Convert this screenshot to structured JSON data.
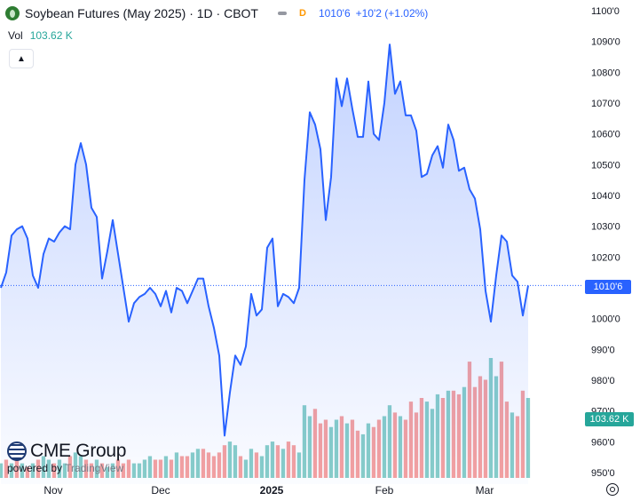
{
  "header": {
    "title": "Soybean Futures (May 2025) · 1D · CBOT",
    "badge": "D",
    "last_price": "1010'6",
    "change": "+10'2 (+1.02%)",
    "icons": [
      "soybean-logo-icon",
      "line-style-icon"
    ]
  },
  "volume": {
    "label": "Vol",
    "value": "103.62 K"
  },
  "price_tag": "1010'6",
  "volume_tag": "103.62 K",
  "branding": {
    "company": "CME Group",
    "powered_prefix": "powered by",
    "powered_brand": "TradingView"
  },
  "colors": {
    "line": "#2962ff",
    "volume_up": "#26a69a",
    "volume_down": "#ef5350"
  },
  "chart_data": {
    "type": "line",
    "title": "Soybean Futures (May 2025) · 1D · CBOT",
    "x_tick_labels": [
      "Nov",
      "Dec",
      "2025",
      "Feb",
      "Mar"
    ],
    "y_tick_labels": [
      "950'0",
      "960'0",
      "970'0",
      "980'0",
      "990'0",
      "1000'0",
      "1010'0",
      "1020'0",
      "1030'0",
      "1040'0",
      "1050'0",
      "1060'0",
      "1070'0",
      "1080'0",
      "1090'0",
      "1100'0"
    ],
    "ylim": [
      947,
      1101
    ],
    "last_value": 1010.75,
    "series": [
      {
        "values": [
          1010,
          1015,
          1027,
          1029,
          1030,
          1026,
          1014,
          1010,
          1021,
          1026,
          1025,
          1028,
          1030,
          1029,
          1050,
          1057,
          1050,
          1036,
          1033,
          1013,
          1022,
          1032,
          1021,
          1010,
          999,
          1005,
          1007,
          1008,
          1010,
          1008,
          1004,
          1009,
          1002,
          1010,
          1009,
          1005,
          1009,
          1013,
          1013,
          1004,
          997,
          988,
          962,
          976,
          988,
          985,
          991,
          1008,
          1001,
          1003,
          1023,
          1026,
          1004,
          1008,
          1007,
          1005,
          1010,
          1045,
          1067,
          1063,
          1055,
          1032,
          1046,
          1078,
          1069,
          1078,
          1068,
          1059,
          1059,
          1077,
          1060,
          1058,
          1070,
          1089,
          1073,
          1077,
          1066,
          1066,
          1061,
          1046,
          1047,
          1053,
          1056,
          1049,
          1063,
          1058,
          1048,
          1049,
          1042,
          1039,
          1029,
          1009,
          999,
          1014,
          1027,
          1025,
          1014,
          1012,
          1001,
          1010.75
        ]
      }
    ],
    "volume": [
      4,
      5,
      4,
      5,
      4,
      3,
      4,
      5,
      6,
      5,
      4,
      5,
      4,
      6,
      7,
      6,
      5,
      4,
      5,
      4,
      3,
      4,
      5,
      4,
      5,
      4,
      4,
      5,
      6,
      5,
      5,
      6,
      5,
      7,
      6,
      6,
      7,
      8,
      8,
      7,
      6,
      7,
      9,
      10,
      9,
      6,
      5,
      8,
      7,
      6,
      9,
      10,
      9,
      8,
      10,
      9,
      7,
      20,
      17,
      19,
      15,
      16,
      14,
      16,
      17,
      15,
      16,
      13,
      12,
      15,
      14,
      16,
      17,
      20,
      18,
      17,
      16,
      21,
      18,
      22,
      21,
      19,
      23,
      22,
      24,
      24,
      23,
      25,
      32,
      25,
      28,
      27,
      33,
      28,
      32,
      21,
      18,
      17,
      24,
      22
    ],
    "volume_up": [
      true,
      false,
      true,
      false,
      true,
      false,
      true,
      false,
      true,
      true,
      false,
      true,
      true,
      false,
      true,
      true,
      false,
      false,
      true,
      false,
      true,
      true,
      false,
      false,
      false,
      true,
      true,
      true,
      true,
      false,
      false,
      true,
      false,
      true,
      false,
      false,
      true,
      true,
      false,
      false,
      false,
      false,
      false,
      true,
      true,
      false,
      true,
      true,
      false,
      true,
      true,
      true,
      false,
      true,
      false,
      false,
      true,
      true,
      true,
      false,
      false,
      false,
      true,
      true,
      false,
      true,
      false,
      false,
      true,
      true,
      false,
      false,
      true,
      true,
      false,
      true,
      false,
      false,
      false,
      false,
      true,
      true,
      true,
      false,
      true,
      false,
      false,
      true,
      false,
      false,
      false,
      false,
      true,
      true,
      false,
      false,
      true,
      false,
      false,
      true
    ]
  }
}
